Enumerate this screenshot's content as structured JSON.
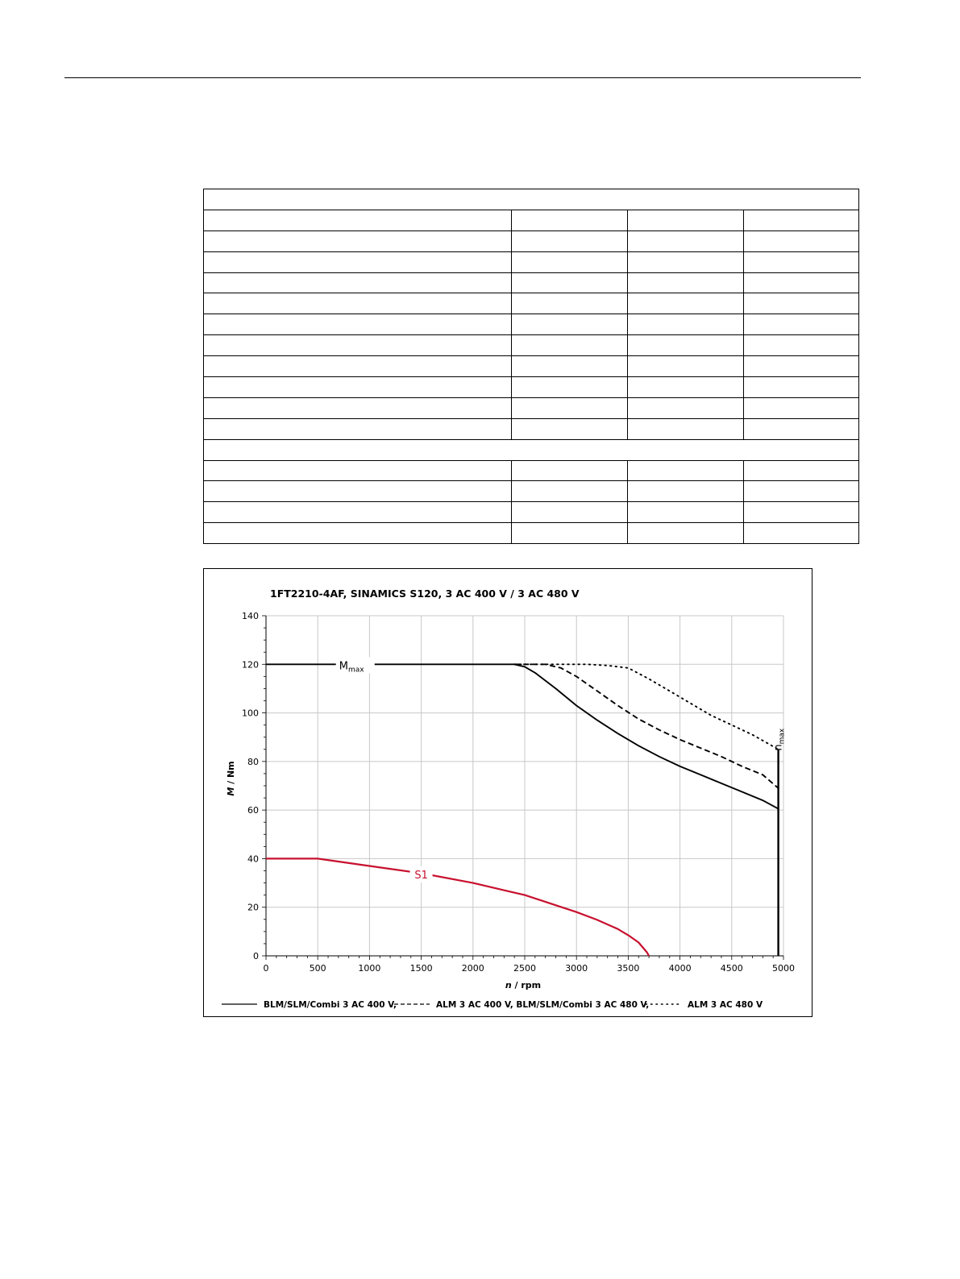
{
  "table": {
    "groups": [
      {
        "header": "",
        "rows": [
          [
            "",
            "",
            "",
            ""
          ],
          [
            "",
            "",
            "",
            ""
          ],
          [
            "",
            "",
            "",
            ""
          ],
          [
            "",
            "",
            "",
            ""
          ],
          [
            "",
            "",
            "",
            ""
          ],
          [
            "",
            "",
            "",
            ""
          ],
          [
            "",
            "",
            "",
            ""
          ],
          [
            "",
            "",
            "",
            ""
          ],
          [
            "",
            "",
            "",
            ""
          ],
          [
            "",
            "",
            "",
            ""
          ],
          [
            "",
            "",
            "",
            ""
          ]
        ]
      },
      {
        "header": "",
        "rows": [
          [
            "",
            "",
            "",
            ""
          ],
          [
            "",
            "",
            "",
            ""
          ],
          [
            "",
            "",
            "",
            ""
          ],
          [
            "",
            "",
            "",
            ""
          ]
        ]
      }
    ]
  },
  "chart_data": {
    "type": "line",
    "title": "1FT2210-4AF,  SINAMICS S120,  3 AC 400 V / 3 AC 480 V",
    "xlabel": {
      "var": "n",
      "unit": " / rpm"
    },
    "ylabel": {
      "var": "M",
      "unit": " / Nm"
    },
    "xlim": [
      0,
      5000
    ],
    "ylim": [
      0,
      140
    ],
    "xticks": [
      0,
      500,
      1000,
      1500,
      2000,
      2500,
      3000,
      3500,
      4000,
      4500,
      5000
    ],
    "yticks": [
      0,
      20,
      40,
      60,
      80,
      100,
      120,
      140
    ],
    "grid": true,
    "legend_position": "bottom",
    "series": [
      {
        "name": "BLM/SLM/Combi 3 AC 400 V,",
        "style": "solid",
        "color": "#000000",
        "x": [
          0,
          2400,
          2500,
          2600,
          2800,
          3000,
          3200,
          3400,
          3600,
          3800,
          4000,
          4200,
          4400,
          4600,
          4800,
          4950
        ],
        "y": [
          120,
          120,
          119,
          116.5,
          110,
          103,
          97,
          91.5,
          86.5,
          82,
          78,
          74.5,
          71,
          67.5,
          64,
          60.5
        ]
      },
      {
        "name": "ALM 3 AC 400 V, BLM/SLM/Combi 3 AC 480 V,",
        "style": "dashed",
        "color": "#000000",
        "x": [
          2400,
          2700,
          2850,
          3000,
          3200,
          3400,
          3600,
          3800,
          4000,
          4200,
          4400,
          4600,
          4800,
          4950
        ],
        "y": [
          120,
          120,
          118.5,
          115,
          109,
          103,
          97.5,
          93,
          89,
          85.5,
          82,
          78,
          74.5,
          69
        ]
      },
      {
        "name": "ALM 3 AC 480 V",
        "style": "dotted",
        "color": "#000000",
        "x": [
          2400,
          3100,
          3300,
          3500,
          3700,
          3900,
          4100,
          4300,
          4500,
          4700,
          4950
        ],
        "y": [
          120,
          120,
          119.5,
          118.5,
          114,
          109,
          104,
          99,
          95,
          91,
          85
        ]
      },
      {
        "name": "S1",
        "style": "solid",
        "color": "#c8102e",
        "x": [
          0,
          500,
          1000,
          1500,
          2000,
          2500,
          3000,
          3200,
          3400,
          3500,
          3600,
          3680,
          3700
        ],
        "y": [
          40,
          40,
          37,
          34,
          30,
          25,
          18,
          14.8,
          11,
          8.5,
          5.5,
          1.5,
          0
        ]
      },
      {
        "name": "n_max",
        "style": "vline",
        "color": "#000000",
        "x": [
          4950,
          4950
        ],
        "y": [
          0,
          85
        ]
      }
    ],
    "annotations": [
      {
        "base": "M",
        "sub": "max",
        "x": 800,
        "y": 120
      },
      {
        "base": "n",
        "sub": "max",
        "x": 4950,
        "y": 89
      },
      {
        "text": "S1",
        "x": 1500,
        "y": 33.5,
        "color": "#c8102e"
      }
    ]
  },
  "legend": [
    {
      "style": "solid",
      "label": "BLM/SLM/Combi 3 AC 400 V,"
    },
    {
      "style": "dashed",
      "label": "ALM 3 AC 400 V, BLM/SLM/Combi 3 AC 480 V,"
    },
    {
      "style": "dotted",
      "label": "ALM 3 AC 480 V"
    }
  ]
}
